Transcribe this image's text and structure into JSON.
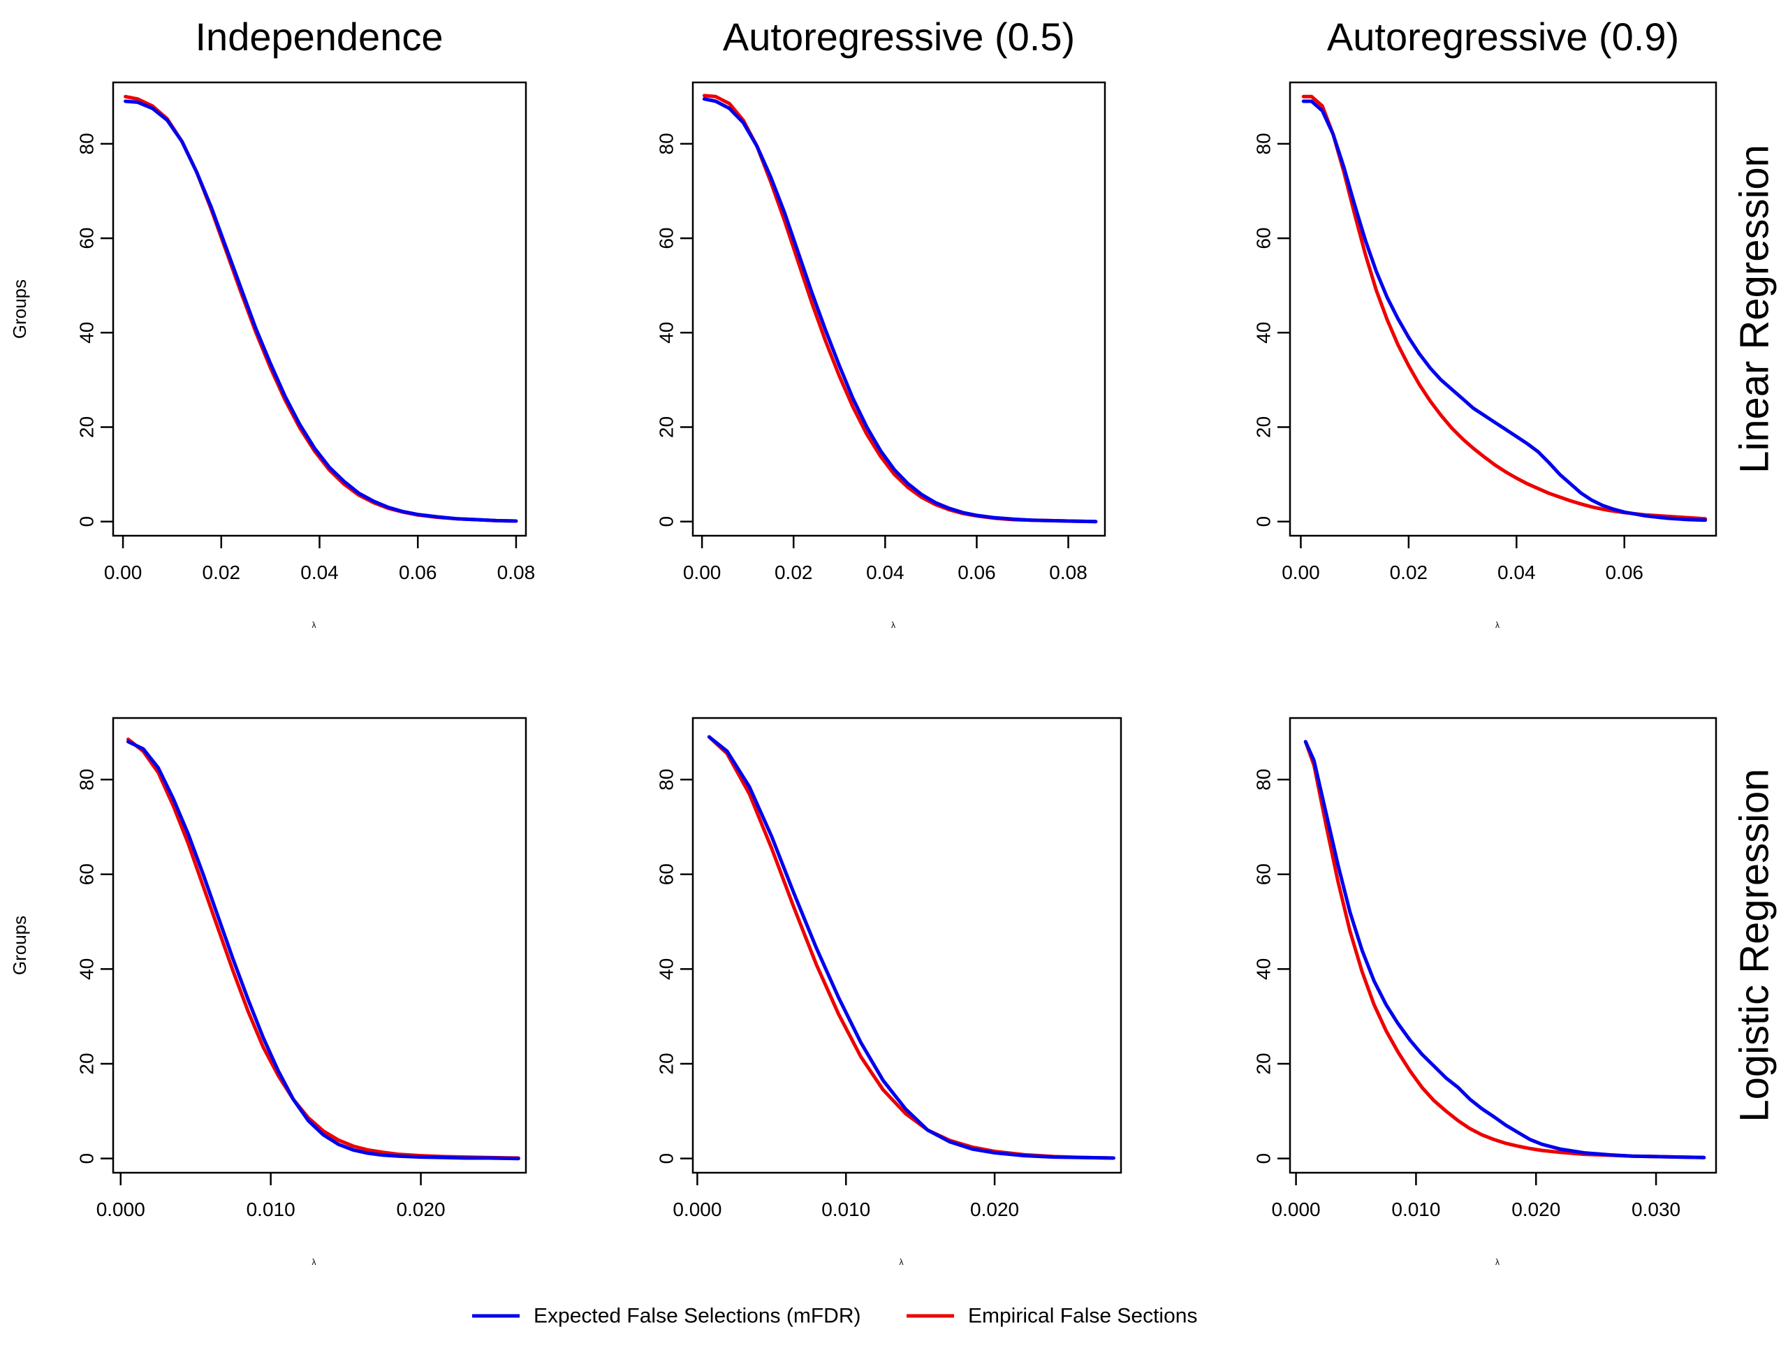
{
  "colors": {
    "expected": "#0000ee",
    "empirical": "#ee0000",
    "axis": "#000000"
  },
  "legend": {
    "placement": "bottom-center",
    "items": [
      {
        "label": "Expected False Selections (mFDR)",
        "color": "#0000ee"
      },
      {
        "label": "Empirical False Sections",
        "color": "#ee0000"
      }
    ]
  },
  "col_titles": [
    "Independence",
    "Autoregressive (0.5)",
    "Autoregressive (0.9)"
  ],
  "row_labels": [
    "Linear Regression",
    "Logistic Regression"
  ],
  "chart_data": [
    {
      "type": "line",
      "row": 0,
      "col": 0,
      "title": "Independence",
      "ylabel": "Groups",
      "xlabel": "λ",
      "xlim": [
        -0.002,
        0.082
      ],
      "ylim": [
        -3,
        93
      ],
      "xticks": [
        "0.00",
        "0.02",
        "0.04",
        "0.06",
        "0.08"
      ],
      "xtick_values": [
        0,
        0.02,
        0.04,
        0.06,
        0.08
      ],
      "yticks": [
        "0",
        "20",
        "40",
        "60",
        "80"
      ],
      "ytick_values": [
        0,
        20,
        40,
        60,
        80
      ],
      "series": [
        {
          "name": "Expected False Selections (mFDR)",
          "x": [
            0.0005,
            0.003,
            0.006,
            0.009,
            0.012,
            0.015,
            0.018,
            0.021,
            0.024,
            0.027,
            0.03,
            0.033,
            0.036,
            0.039,
            0.042,
            0.045,
            0.048,
            0.051,
            0.054,
            0.057,
            0.06,
            0.064,
            0.068,
            0.072,
            0.076,
            0.08
          ],
          "y": [
            89,
            88.8,
            87.5,
            85,
            80.5,
            74,
            66.5,
            58,
            49.5,
            41,
            33.5,
            26.5,
            20.5,
            15.5,
            11.5,
            8.5,
            6,
            4.3,
            3,
            2.1,
            1.5,
            1,
            0.6,
            0.4,
            0.2,
            0.1
          ]
        },
        {
          "name": "Empirical False Sections",
          "x": [
            0.0005,
            0.003,
            0.006,
            0.009,
            0.012,
            0.015,
            0.018,
            0.021,
            0.024,
            0.027,
            0.03,
            0.033,
            0.036,
            0.039,
            0.042,
            0.045,
            0.048,
            0.051,
            0.054,
            0.057,
            0.06,
            0.064,
            0.068,
            0.072,
            0.076,
            0.08
          ],
          "y": [
            90,
            89.5,
            88,
            85.3,
            80.5,
            74,
            66,
            57.3,
            48.6,
            40.2,
            32.6,
            25.7,
            19.8,
            14.9,
            10.9,
            7.9,
            5.6,
            4,
            2.8,
            2,
            1.4,
            0.9,
            0.6,
            0.4,
            0.2,
            0.1
          ]
        }
      ]
    },
    {
      "type": "line",
      "row": 0,
      "col": 1,
      "title": "Autoregressive (0.5)",
      "ylabel": "",
      "xlabel": "λ",
      "xlim": [
        -0.002,
        0.088
      ],
      "ylim": [
        -3,
        93
      ],
      "xticks": [
        "0.00",
        "0.02",
        "0.04",
        "0.06",
        "0.08"
      ],
      "xtick_values": [
        0,
        0.02,
        0.04,
        0.06,
        0.08
      ],
      "yticks": [
        "0",
        "20",
        "40",
        "60",
        "80"
      ],
      "ytick_values": [
        0,
        20,
        40,
        60,
        80
      ],
      "series": [
        {
          "name": "Expected False Selections (mFDR)",
          "x": [
            0.0005,
            0.003,
            0.006,
            0.009,
            0.012,
            0.015,
            0.018,
            0.021,
            0.024,
            0.027,
            0.03,
            0.033,
            0.036,
            0.039,
            0.042,
            0.045,
            0.048,
            0.051,
            0.054,
            0.057,
            0.06,
            0.064,
            0.068,
            0.072,
            0.076,
            0.08,
            0.086
          ],
          "y": [
            89.5,
            89,
            87.5,
            84.5,
            79.5,
            73,
            65.5,
            57,
            48.5,
            40.5,
            33,
            26,
            20,
            15,
            11,
            8,
            5.7,
            4,
            2.8,
            1.9,
            1.3,
            0.8,
            0.5,
            0.3,
            0.2,
            0.1,
            0
          ]
        },
        {
          "name": "Empirical False Sections",
          "x": [
            0.0005,
            0.003,
            0.006,
            0.009,
            0.012,
            0.015,
            0.018,
            0.021,
            0.024,
            0.027,
            0.03,
            0.033,
            0.036,
            0.039,
            0.042,
            0.045,
            0.048,
            0.051,
            0.054,
            0.057,
            0.06,
            0.064,
            0.068,
            0.072,
            0.076,
            0.08,
            0.086
          ],
          "y": [
            90.2,
            90,
            88.5,
            85,
            79.5,
            72,
            63.8,
            55,
            46.3,
            38.2,
            30.8,
            24.2,
            18.5,
            13.8,
            10,
            7.2,
            5.1,
            3.6,
            2.5,
            1.7,
            1.2,
            0.7,
            0.4,
            0.3,
            0.2,
            0.1,
            0
          ]
        }
      ]
    },
    {
      "type": "line",
      "row": 0,
      "col": 2,
      "title": "Autoregressive (0.9)",
      "ylabel": "",
      "xlabel": "λ",
      "xlim": [
        -0.002,
        0.077
      ],
      "ylim": [
        -3,
        93
      ],
      "xticks": [
        "0.00",
        "0.02",
        "0.04",
        "0.06"
      ],
      "xtick_values": [
        0,
        0.02,
        0.04,
        0.06
      ],
      "yticks": [
        "0",
        "20",
        "40",
        "60",
        "80"
      ],
      "ytick_values": [
        0,
        20,
        40,
        60,
        80
      ],
      "series": [
        {
          "name": "Expected False Selections (mFDR)",
          "x": [
            0.0005,
            0.002,
            0.004,
            0.006,
            0.008,
            0.01,
            0.012,
            0.014,
            0.016,
            0.018,
            0.02,
            0.022,
            0.024,
            0.026,
            0.028,
            0.03,
            0.032,
            0.034,
            0.036,
            0.038,
            0.04,
            0.042,
            0.044,
            0.046,
            0.048,
            0.05,
            0.052,
            0.054,
            0.056,
            0.058,
            0.06,
            0.064,
            0.068,
            0.072,
            0.075
          ],
          "y": [
            89,
            89,
            87,
            82,
            75,
            67,
            59.5,
            53,
            47.5,
            43,
            39,
            35.5,
            32.5,
            30,
            28,
            26,
            24,
            22.5,
            21,
            19.5,
            18,
            16.5,
            14.8,
            12.5,
            10,
            8,
            6,
            4.5,
            3.4,
            2.6,
            2,
            1.2,
            0.7,
            0.4,
            0.3
          ]
        },
        {
          "name": "Empirical False Sections",
          "x": [
            0.0005,
            0.002,
            0.004,
            0.006,
            0.008,
            0.01,
            0.012,
            0.014,
            0.016,
            0.018,
            0.02,
            0.022,
            0.024,
            0.026,
            0.028,
            0.03,
            0.032,
            0.034,
            0.036,
            0.038,
            0.04,
            0.042,
            0.044,
            0.046,
            0.048,
            0.05,
            0.052,
            0.054,
            0.056,
            0.058,
            0.06,
            0.064,
            0.068,
            0.072,
            0.075
          ],
          "y": [
            90,
            90,
            88,
            82,
            74,
            65,
            56.5,
            49,
            42.8,
            37.5,
            33,
            29,
            25.5,
            22.5,
            19.8,
            17.5,
            15.5,
            13.7,
            12,
            10.5,
            9.2,
            8,
            7,
            6,
            5.2,
            4.4,
            3.7,
            3.1,
            2.6,
            2.2,
            1.9,
            1.4,
            1.1,
            0.8,
            0.6
          ]
        }
      ]
    },
    {
      "type": "line",
      "row": 1,
      "col": 0,
      "title": "",
      "ylabel": "Groups",
      "xlabel": "λ",
      "xlim": [
        -0.0005,
        0.027
      ],
      "ylim": [
        -3,
        93
      ],
      "xticks": [
        "0.000",
        "0.010",
        "0.020"
      ],
      "xtick_values": [
        0,
        0.01,
        0.02
      ],
      "yticks": [
        "0",
        "20",
        "40",
        "60",
        "80"
      ],
      "ytick_values": [
        0,
        20,
        40,
        60,
        80
      ],
      "series": [
        {
          "name": "Expected False Selections (mFDR)",
          "x": [
            0.0005,
            0.0015,
            0.0025,
            0.0035,
            0.0045,
            0.0055,
            0.0065,
            0.0075,
            0.0085,
            0.0095,
            0.0105,
            0.0115,
            0.0125,
            0.0135,
            0.0145,
            0.0155,
            0.0165,
            0.0175,
            0.0185,
            0.02,
            0.0215,
            0.023,
            0.0245,
            0.0265
          ],
          "y": [
            88,
            86.5,
            82.5,
            76,
            68.5,
            60,
            51,
            42,
            33.5,
            25.5,
            18.5,
            12.5,
            8,
            5,
            3,
            1.8,
            1.1,
            0.7,
            0.5,
            0.3,
            0.2,
            0.1,
            0.1,
            0
          ]
        },
        {
          "name": "Empirical False Sections",
          "x": [
            0.0005,
            0.0015,
            0.0025,
            0.0035,
            0.0045,
            0.0055,
            0.0065,
            0.0075,
            0.0085,
            0.0095,
            0.0105,
            0.0115,
            0.0125,
            0.0135,
            0.0145,
            0.0155,
            0.0165,
            0.0175,
            0.0185,
            0.02,
            0.0215,
            0.023,
            0.0245,
            0.0265
          ],
          "y": [
            88.5,
            86,
            81.5,
            74.5,
            66.5,
            57.5,
            48.5,
            39.5,
            31,
            23.5,
            17.5,
            12.5,
            8.6,
            5.8,
            3.9,
            2.6,
            1.8,
            1.3,
            0.9,
            0.6,
            0.4,
            0.3,
            0.2,
            0.1
          ]
        }
      ]
    },
    {
      "type": "line",
      "row": 1,
      "col": 1,
      "title": "",
      "ylabel": "",
      "xlabel": "λ",
      "xlim": [
        -0.0003,
        0.0285
      ],
      "ylim": [
        -3,
        93
      ],
      "xticks": [
        "0.000",
        "0.010",
        "0.020"
      ],
      "xtick_values": [
        0,
        0.01,
        0.02
      ],
      "yticks": [
        "0",
        "20",
        "40",
        "60",
        "80"
      ],
      "ytick_values": [
        0,
        20,
        40,
        60,
        80
      ],
      "series": [
        {
          "name": "Expected False Selections (mFDR)",
          "x": [
            0.0008,
            0.002,
            0.0035,
            0.005,
            0.0065,
            0.008,
            0.0095,
            0.011,
            0.0125,
            0.014,
            0.0155,
            0.017,
            0.0185,
            0.02,
            0.022,
            0.024,
            0.026,
            0.028
          ],
          "y": [
            89,
            86,
            78.5,
            68,
            56,
            44.5,
            34,
            24.5,
            16.5,
            10.5,
            6,
            3.5,
            2,
            1.2,
            0.6,
            0.3,
            0.2,
            0.1
          ]
        },
        {
          "name": "Empirical False Sections",
          "x": [
            0.0008,
            0.002,
            0.0035,
            0.005,
            0.0065,
            0.008,
            0.0095,
            0.011,
            0.0125,
            0.014,
            0.0155,
            0.017,
            0.0185,
            0.02,
            0.022,
            0.024,
            0.026,
            0.028
          ],
          "y": [
            89,
            85.5,
            77,
            65.5,
            53,
            41,
            30.5,
            21.5,
            14.5,
            9.5,
            6,
            3.8,
            2.4,
            1.5,
            0.8,
            0.4,
            0.2,
            0.1
          ]
        }
      ]
    },
    {
      "type": "line",
      "row": 1,
      "col": 2,
      "title": "",
      "ylabel": "",
      "xlabel": "λ",
      "xlim": [
        -0.0005,
        0.035
      ],
      "ylim": [
        -3,
        93
      ],
      "xticks": [
        "0.000",
        "0.010",
        "0.020",
        "0.030"
      ],
      "xtick_values": [
        0,
        0.01,
        0.02,
        0.03
      ],
      "yticks": [
        "0",
        "20",
        "40",
        "60",
        "80"
      ],
      "ytick_values": [
        0,
        20,
        40,
        60,
        80
      ],
      "series": [
        {
          "name": "Expected False Selections (mFDR)",
          "x": [
            0.0008,
            0.0015,
            0.0025,
            0.0035,
            0.0045,
            0.0055,
            0.0065,
            0.0075,
            0.0085,
            0.0095,
            0.0105,
            0.0115,
            0.0125,
            0.0135,
            0.0145,
            0.0155,
            0.0165,
            0.0175,
            0.0185,
            0.0195,
            0.0205,
            0.022,
            0.024,
            0.026,
            0.028,
            0.03,
            0.032,
            0.034
          ],
          "y": [
            88,
            84,
            73,
            62,
            52,
            44,
            37.5,
            32.5,
            28.5,
            25,
            22,
            19.5,
            17,
            15,
            12.5,
            10.5,
            8.8,
            7,
            5.5,
            4,
            3,
            2,
            1.2,
            0.8,
            0.5,
            0.4,
            0.3,
            0.2
          ]
        },
        {
          "name": "Empirical False Sections",
          "x": [
            0.0008,
            0.0015,
            0.0025,
            0.0035,
            0.0045,
            0.0055,
            0.0065,
            0.0075,
            0.0085,
            0.0095,
            0.0105,
            0.0115,
            0.0125,
            0.0135,
            0.0145,
            0.0155,
            0.0165,
            0.0175,
            0.0185,
            0.0195,
            0.0205,
            0.022,
            0.024,
            0.026,
            0.028,
            0.03,
            0.032,
            0.034
          ],
          "y": [
            88,
            83,
            70.5,
            58.5,
            48,
            39.5,
            32.5,
            27,
            22.5,
            18.5,
            15,
            12.2,
            10,
            8,
            6.3,
            5,
            4,
            3.2,
            2.6,
            2.1,
            1.7,
            1.3,
            0.9,
            0.7,
            0.5,
            0.4,
            0.3,
            0.2
          ]
        }
      ]
    }
  ]
}
